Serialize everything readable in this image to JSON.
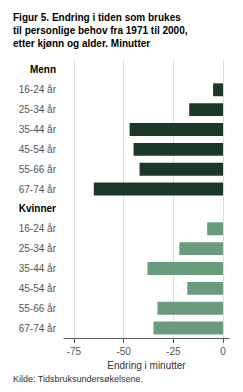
{
  "chart_data": {
    "type": "bar",
    "orientation": "horizontal",
    "title": "Figur 5. Endring i tiden som brukes\ntil personlige behov fra 1971 til 2000,\netter kjønn og alder. Minutter",
    "xlabel": "Endring i minutter",
    "source": "Kilde: Tidsbruksundersøkelsene.",
    "categories": [
      "16-24 år",
      "25-34 år",
      "35-44 år",
      "45-54 år",
      "55-66 år",
      "67-74 år"
    ],
    "series": [
      {
        "name": "Menn",
        "color": "#1c3829",
        "values": [
          -5,
          -17,
          -47,
          -45,
          -42,
          -65
        ]
      },
      {
        "name": "Kvinner",
        "color": "#6b9b7e",
        "values": [
          -8,
          -22,
          -38,
          -18,
          -33,
          -35
        ]
      }
    ],
    "xlim": [
      -80,
      3
    ],
    "xticks": [
      -75,
      -50,
      -25,
      0
    ],
    "grid": true
  }
}
